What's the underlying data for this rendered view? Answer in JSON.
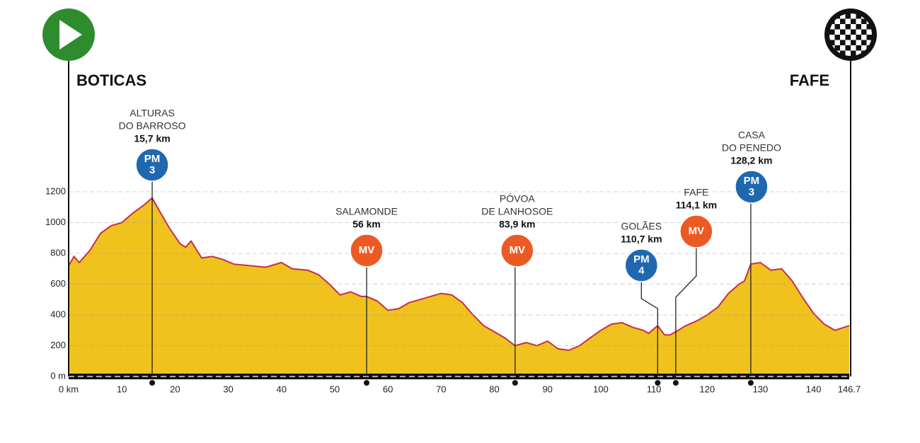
{
  "chart_data": {
    "type": "area",
    "x": [
      0,
      1,
      2,
      4,
      6,
      8,
      10,
      12,
      14,
      15.7,
      17,
      19,
      21,
      22,
      23,
      25,
      27,
      29,
      31,
      34,
      37,
      40,
      42,
      45,
      47,
      49,
      51,
      53,
      55,
      56,
      58,
      60,
      62,
      64,
      66,
      68,
      70,
      72,
      74,
      76,
      78,
      80,
      82,
      83.9,
      86,
      88,
      90,
      92,
      94,
      96,
      98,
      100,
      102,
      104,
      106,
      108,
      109,
      110.7,
      112,
      113,
      114.1,
      116,
      118,
      120,
      122,
      124,
      126,
      127,
      128.2,
      130,
      132,
      134,
      136,
      138,
      140,
      142,
      144,
      146.7
    ],
    "values": [
      720,
      780,
      740,
      820,
      930,
      980,
      1000,
      1060,
      1110,
      1160,
      1080,
      960,
      860,
      840,
      880,
      770,
      780,
      760,
      730,
      720,
      710,
      740,
      700,
      690,
      660,
      600,
      530,
      550,
      520,
      520,
      490,
      430,
      440,
      480,
      500,
      520,
      540,
      530,
      480,
      400,
      330,
      290,
      250,
      200,
      220,
      200,
      230,
      180,
      170,
      200,
      250,
      300,
      340,
      350,
      320,
      300,
      280,
      330,
      270,
      270,
      290,
      330,
      360,
      400,
      450,
      540,
      600,
      620,
      730,
      740,
      690,
      700,
      620,
      510,
      410,
      340,
      300,
      330
    ],
    "xlim": [
      0,
      146.7
    ],
    "ylim": [
      0,
      1200
    ],
    "xticks": [
      {
        "value": 0,
        "label": "0 km"
      },
      10,
      20,
      30,
      40,
      50,
      60,
      70,
      80,
      90,
      100,
      110,
      120,
      130,
      140,
      146.7
    ],
    "yticks": [
      {
        "value": 0,
        "label": "0 m"
      },
      200,
      400,
      600,
      800,
      1000,
      1200
    ],
    "grid": true,
    "fill_color": "#f0c21e",
    "line_color": "#c2304c",
    "start": {
      "label": "BOTICAS",
      "color": "#2e8b2e"
    },
    "finish": {
      "label": "FAFE",
      "color": "#111111"
    },
    "annotations": [
      {
        "name": [
          "ALTURAS",
          "DO BARROSO"
        ],
        "km": 15.7,
        "km_label": "15,7 km",
        "badge": [
          "PM",
          "3"
        ],
        "color": "#1f68b0"
      },
      {
        "name": [
          "SALAMONDE"
        ],
        "km": 56,
        "km_label": "56 km",
        "badge": [
          "MV"
        ],
        "color": "#ec5a24"
      },
      {
        "name": [
          "PÓVOA",
          "DE LANHOSOE"
        ],
        "km": 83.9,
        "km_label": "83,9 km",
        "badge": [
          "MV"
        ],
        "color": "#ec5a24"
      },
      {
        "name": [
          "GOLÃES"
        ],
        "km": 110.7,
        "km_label": "110,7 km",
        "badge": [
          "PM",
          "4"
        ],
        "color": "#1f68b0"
      },
      {
        "name": [
          "FAFE"
        ],
        "km": 114.1,
        "km_label": "114,1 km",
        "badge": [
          "MV"
        ],
        "color": "#ec5a24"
      },
      {
        "name": [
          "CASA",
          "DO PENEDO"
        ],
        "km": 128.2,
        "km_label": "128,2 km",
        "badge": [
          "PM",
          "3"
        ],
        "color": "#1f68b0"
      }
    ]
  }
}
